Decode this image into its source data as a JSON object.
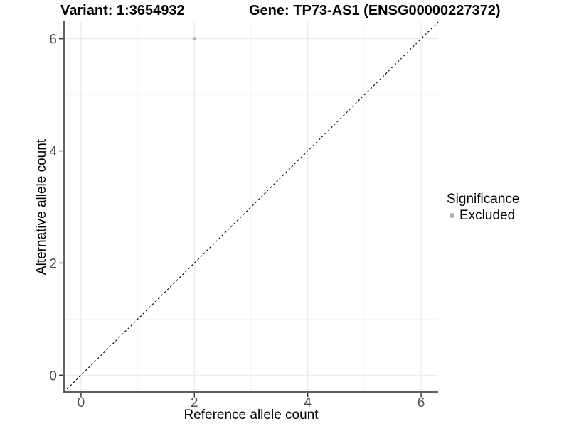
{
  "header": {
    "variant_title": "Variant: 1:3654932",
    "gene_title": "Gene: TP73-AS1 (ENSG00000227372)"
  },
  "axes": {
    "x_label": "Reference allele count",
    "y_label": "Alternative allele count"
  },
  "legend": {
    "title": "Significance",
    "items": [
      {
        "label": "Excluded",
        "color": "#ababab"
      }
    ]
  },
  "chart_data": {
    "type": "scatter",
    "title": "Variant: 1:3654932 | Gene: TP73-AS1 (ENSG00000227372)",
    "xlabel": "Reference allele count",
    "ylabel": "Alternative allele count",
    "xlim": [
      -0.3,
      6.3
    ],
    "ylim": [
      -0.3,
      6.3
    ],
    "xticks": [
      0,
      2,
      4,
      6
    ],
    "yticks": [
      0,
      2,
      4,
      6
    ],
    "xticks_minor": [
      1,
      3,
      5
    ],
    "yticks_minor": [
      1,
      3,
      5
    ],
    "grid": true,
    "legend_position": "right",
    "series": [
      {
        "name": "Excluded",
        "color": "#b3b3b3",
        "points": [
          {
            "x": 2,
            "y": 6
          }
        ]
      }
    ],
    "reference_line": {
      "type": "identity y=x",
      "style": "dashed",
      "color": "#000000",
      "from": [
        -0.3,
        -0.3
      ],
      "to": [
        6.3,
        6.3
      ]
    }
  },
  "style": {
    "background": "#ffffff",
    "grid_major": "#e9e9e9",
    "grid_minor": "#f5f5f5",
    "axis_line": "#4a4a4a",
    "tick_color": "#333333",
    "tick_label_color": "#4d4d4d",
    "text_color": "#000000"
  }
}
